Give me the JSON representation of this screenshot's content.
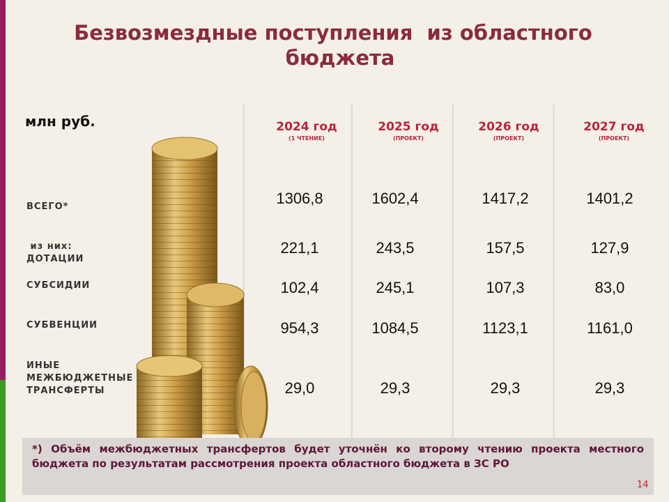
{
  "title": [
    "Безвозмездные поступления  из областного",
    "бюджета"
  ],
  "unit": "млн руб.",
  "columns": [
    {
      "year": "2024 год",
      "note": "(1 ЧТЕНИЕ)"
    },
    {
      "year": "2025 год",
      "note": "(ПРОЕКТ)"
    },
    {
      "year": "2026 год",
      "note": "(ПРОЕКТ)"
    },
    {
      "year": "2027 год",
      "note": "(ПРОЕКТ)"
    }
  ],
  "rows": [
    {
      "label": [
        "ВСЕГО*"
      ],
      "values": [
        "1306,8",
        "1602,4",
        "1417,2",
        "1401,2"
      ]
    },
    {
      "label": [
        " из них:",
        "ДОТАЦИИ"
      ],
      "values": [
        "221,1",
        "243,5",
        "157,5",
        "127,9"
      ]
    },
    {
      "label": [
        "СУБСИДИИ"
      ],
      "values": [
        "102,4",
        "245,1",
        "107,3",
        "83,0"
      ]
    },
    {
      "label": [
        "СУБВЕНЦИИ"
      ],
      "values": [
        "954,3",
        "1084,5",
        "1123,1",
        "1161,0"
      ]
    },
    {
      "label": [
        "ИНЫЕ",
        "МЕЖБЮДЖЕТНЫЕ",
        "ТРАНСФЕРТЫ"
      ],
      "values": [
        "29,0",
        "29,3",
        "29,3",
        "29,3"
      ]
    }
  ],
  "footnote": "*)  Объём  межбюджетных трансфертов будет уточнён ко второму  чтению проекта местного  бюджета  по  результатам  рассмотрения  проекта  областного бюджета в ЗС РО",
  "page_number": "14"
}
